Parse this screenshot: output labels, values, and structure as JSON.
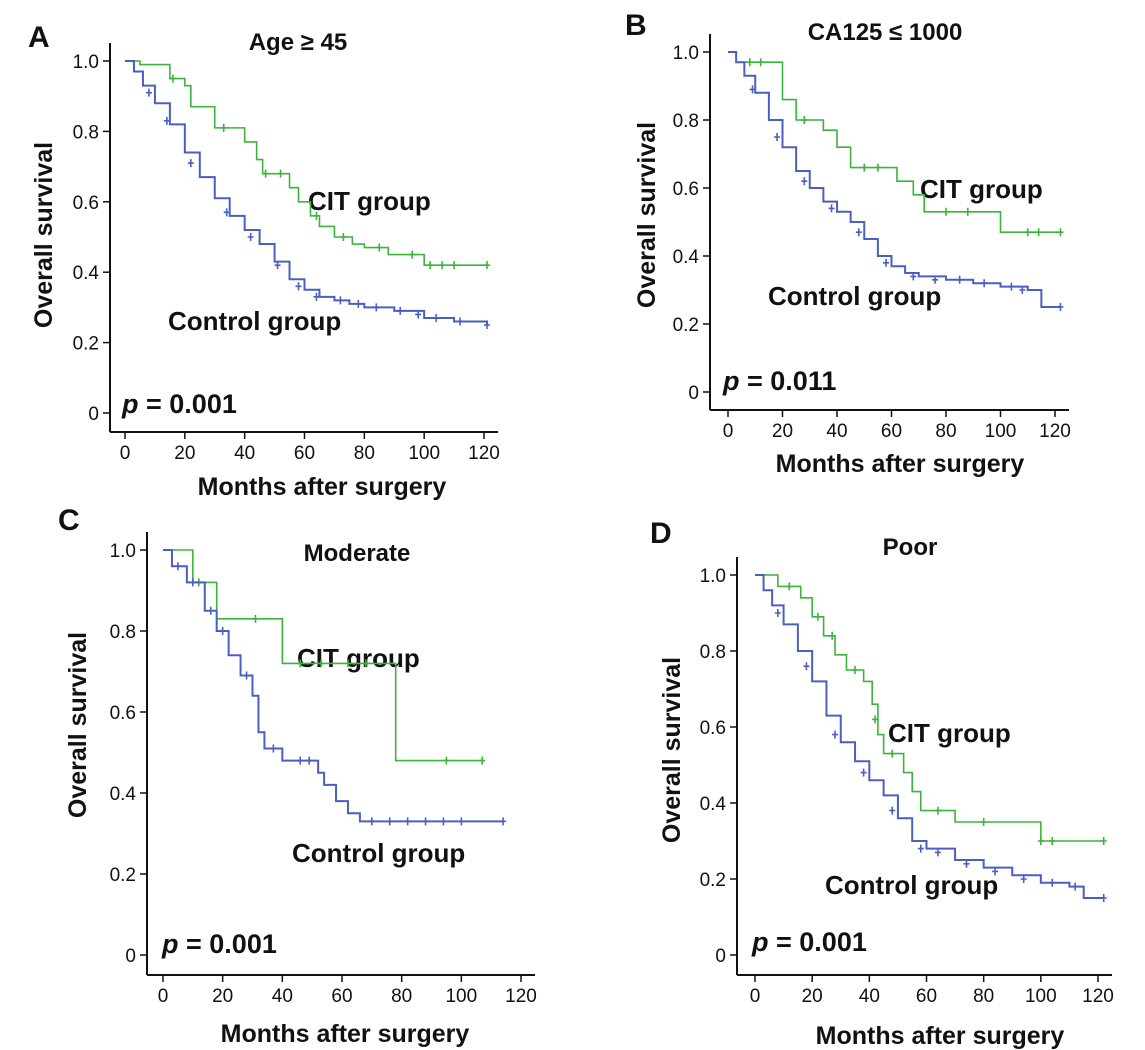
{
  "figure": {
    "panels": [
      "A",
      "B",
      "C",
      "D"
    ]
  },
  "chart_data": [
    {
      "panel": "A",
      "type": "line",
      "title": "Age ≥ 45",
      "xlabel": "Months after surgery",
      "ylabel": "Overall survival",
      "xlim": [
        0,
        125
      ],
      "ylim": [
        0,
        1.0
      ],
      "xticks": [
        "0",
        "20",
        "40",
        "60",
        "80",
        "100",
        "120"
      ],
      "yticks": [
        "0",
        "0.2",
        "0.4",
        "0.6",
        "0.8",
        "1.0"
      ],
      "p_value_label": "p",
      "p_value": "= 0.001",
      "colors": {
        "cit": "#3cb43c",
        "control": "#4a5fc1"
      },
      "series": [
        {
          "name": "CIT group",
          "step": [
            [
              0,
              1.0
            ],
            [
              5,
              0.99
            ],
            [
              15,
              0.95
            ],
            [
              20,
              0.93
            ],
            [
              22,
              0.87
            ],
            [
              28,
              0.87
            ],
            [
              30,
              0.81
            ],
            [
              38,
              0.81
            ],
            [
              40,
              0.77
            ],
            [
              44,
              0.72
            ],
            [
              46,
              0.68
            ],
            [
              53,
              0.68
            ],
            [
              55,
              0.64
            ],
            [
              58,
              0.6
            ],
            [
              62,
              0.56
            ],
            [
              65,
              0.53
            ],
            [
              70,
              0.5
            ],
            [
              76,
              0.48
            ],
            [
              80,
              0.47
            ],
            [
              88,
              0.45
            ],
            [
              100,
              0.42
            ],
            [
              121,
              0.42
            ]
          ],
          "censor": [
            [
              16,
              0.95
            ],
            [
              33,
              0.81
            ],
            [
              47,
              0.68
            ],
            [
              52,
              0.68
            ],
            [
              64,
              0.56
            ],
            [
              73,
              0.5
            ],
            [
              85,
              0.47
            ],
            [
              96,
              0.45
            ],
            [
              102,
              0.42
            ],
            [
              106,
              0.42
            ],
            [
              110,
              0.42
            ],
            [
              121,
              0.42
            ]
          ]
        },
        {
          "name": "Control group",
          "step": [
            [
              0,
              1.0
            ],
            [
              3,
              0.97
            ],
            [
              6,
              0.93
            ],
            [
              10,
              0.88
            ],
            [
              15,
              0.82
            ],
            [
              20,
              0.74
            ],
            [
              25,
              0.67
            ],
            [
              30,
              0.61
            ],
            [
              35,
              0.56
            ],
            [
              40,
              0.52
            ],
            [
              45,
              0.48
            ],
            [
              50,
              0.43
            ],
            [
              55,
              0.38
            ],
            [
              60,
              0.35
            ],
            [
              65,
              0.33
            ],
            [
              70,
              0.32
            ],
            [
              75,
              0.31
            ],
            [
              80,
              0.3
            ],
            [
              90,
              0.29
            ],
            [
              100,
              0.27
            ],
            [
              110,
              0.26
            ],
            [
              121,
              0.25
            ]
          ],
          "censor": [
            [
              8,
              0.91
            ],
            [
              14,
              0.83
            ],
            [
              22,
              0.71
            ],
            [
              34,
              0.57
            ],
            [
              42,
              0.5
            ],
            [
              51,
              0.42
            ],
            [
              58,
              0.36
            ],
            [
              64,
              0.33
            ],
            [
              72,
              0.32
            ],
            [
              78,
              0.31
            ],
            [
              84,
              0.3
            ],
            [
              92,
              0.29
            ],
            [
              98,
              0.28
            ],
            [
              104,
              0.27
            ],
            [
              112,
              0.26
            ],
            [
              121,
              0.25
            ]
          ]
        }
      ]
    },
    {
      "panel": "B",
      "type": "line",
      "title": "CA125 ≤ 1000",
      "xlabel": "Months after surgery",
      "ylabel": "Overall survival",
      "xlim": [
        -5,
        130
      ],
      "ylim": [
        0,
        1.0
      ],
      "xticks": [
        "0",
        "20",
        "40",
        "60",
        "80",
        "100",
        "120"
      ],
      "yticks": [
        "0",
        "0.2",
        "0.4",
        "0.6",
        "0.8",
        "1.0"
      ],
      "p_value_label": "p",
      "p_value": "= 0.011",
      "colors": {
        "cit": "#3cb43c",
        "control": "#4a5fc1"
      },
      "series": [
        {
          "name": "CIT group",
          "step": [
            [
              0,
              1.0
            ],
            [
              3,
              0.97
            ],
            [
              18,
              0.97
            ],
            [
              20,
              0.86
            ],
            [
              25,
              0.8
            ],
            [
              32,
              0.8
            ],
            [
              35,
              0.77
            ],
            [
              40,
              0.72
            ],
            [
              45,
              0.66
            ],
            [
              58,
              0.66
            ],
            [
              62,
              0.62
            ],
            [
              68,
              0.58
            ],
            [
              72,
              0.53
            ],
            [
              95,
              0.53
            ],
            [
              100,
              0.47
            ],
            [
              122,
              0.47
            ]
          ],
          "censor": [
            [
              8,
              0.97
            ],
            [
              12,
              0.97
            ],
            [
              28,
              0.8
            ],
            [
              50,
              0.66
            ],
            [
              55,
              0.66
            ],
            [
              80,
              0.53
            ],
            [
              88,
              0.53
            ],
            [
              110,
              0.47
            ],
            [
              114,
              0.47
            ],
            [
              122,
              0.47
            ]
          ]
        },
        {
          "name": "Control group",
          "step": [
            [
              0,
              1.0
            ],
            [
              3,
              0.97
            ],
            [
              6,
              0.93
            ],
            [
              10,
              0.88
            ],
            [
              15,
              0.8
            ],
            [
              20,
              0.72
            ],
            [
              25,
              0.65
            ],
            [
              30,
              0.6
            ],
            [
              35,
              0.56
            ],
            [
              40,
              0.53
            ],
            [
              45,
              0.5
            ],
            [
              50,
              0.45
            ],
            [
              55,
              0.4
            ],
            [
              60,
              0.37
            ],
            [
              65,
              0.35
            ],
            [
              70,
              0.34
            ],
            [
              80,
              0.33
            ],
            [
              90,
              0.32
            ],
            [
              100,
              0.31
            ],
            [
              110,
              0.3
            ],
            [
              115,
              0.25
            ],
            [
              122,
              0.25
            ]
          ],
          "censor": [
            [
              9,
              0.89
            ],
            [
              18,
              0.75
            ],
            [
              28,
              0.62
            ],
            [
              38,
              0.54
            ],
            [
              48,
              0.47
            ],
            [
              58,
              0.38
            ],
            [
              68,
              0.34
            ],
            [
              76,
              0.33
            ],
            [
              85,
              0.33
            ],
            [
              94,
              0.32
            ],
            [
              104,
              0.31
            ],
            [
              108,
              0.3
            ],
            [
              122,
              0.25
            ]
          ]
        }
      ]
    },
    {
      "panel": "C",
      "type": "line",
      "title": "Moderate",
      "xlabel": "Months after surgery",
      "ylabel": "Overall survival",
      "xlim": [
        -5,
        125
      ],
      "ylim": [
        0,
        1.0
      ],
      "xticks": [
        "0",
        "20",
        "40",
        "60",
        "80",
        "100",
        "120"
      ],
      "yticks": [
        "0",
        "0.2",
        "0.4",
        "0.6",
        "0.8",
        "1.0"
      ],
      "p_value_label": "p",
      "p_value": "= 0.001",
      "colors": {
        "cit": "#3cb43c",
        "control": "#4a5fc1"
      },
      "series": [
        {
          "name": "CIT group",
          "step": [
            [
              0,
              1.0
            ],
            [
              10,
              0.92
            ],
            [
              18,
              0.83
            ],
            [
              40,
              0.72
            ],
            [
              78,
              0.48
            ],
            [
              107,
              0.48
            ]
          ],
          "censor": [
            [
              12,
              0.92
            ],
            [
              31,
              0.83
            ],
            [
              46,
              0.72
            ],
            [
              53,
              0.72
            ],
            [
              62,
              0.72
            ],
            [
              68,
              0.72
            ],
            [
              95,
              0.48
            ],
            [
              107,
              0.48
            ]
          ]
        },
        {
          "name": "Control group",
          "step": [
            [
              0,
              1.0
            ],
            [
              3,
              0.96
            ],
            [
              8,
              0.92
            ],
            [
              14,
              0.85
            ],
            [
              18,
              0.8
            ],
            [
              22,
              0.74
            ],
            [
              26,
              0.69
            ],
            [
              30,
              0.64
            ],
            [
              32,
              0.55
            ],
            [
              34,
              0.51
            ],
            [
              40,
              0.48
            ],
            [
              52,
              0.45
            ],
            [
              54,
              0.42
            ],
            [
              58,
              0.38
            ],
            [
              62,
              0.35
            ],
            [
              66,
              0.33
            ],
            [
              114,
              0.33
            ]
          ],
          "censor": [
            [
              5,
              0.96
            ],
            [
              10,
              0.92
            ],
            [
              16,
              0.85
            ],
            [
              20,
              0.8
            ],
            [
              28,
              0.69
            ],
            [
              37,
              0.51
            ],
            [
              46,
              0.48
            ],
            [
              49,
              0.48
            ],
            [
              70,
              0.33
            ],
            [
              76,
              0.33
            ],
            [
              82,
              0.33
            ],
            [
              88,
              0.33
            ],
            [
              94,
              0.33
            ],
            [
              100,
              0.33
            ],
            [
              114,
              0.33
            ]
          ]
        }
      ]
    },
    {
      "panel": "D",
      "type": "line",
      "title": "Poor",
      "xlabel": "Months after surgery",
      "ylabel": "Overall survival",
      "xlim": [
        -5,
        125
      ],
      "ylim": [
        0,
        1.0
      ],
      "xticks": [
        "0",
        "20",
        "40",
        "60",
        "80",
        "100",
        "120"
      ],
      "yticks": [
        "0",
        "0.2",
        "0.4",
        "0.6",
        "0.8",
        "1.0"
      ],
      "p_value_label": "p",
      "p_value": "= 0.001",
      "colors": {
        "cit": "#3cb43c",
        "control": "#4a5fc1"
      },
      "series": [
        {
          "name": "CIT group",
          "step": [
            [
              0,
              1.0
            ],
            [
              8,
              0.97
            ],
            [
              16,
              0.94
            ],
            [
              20,
              0.89
            ],
            [
              24,
              0.84
            ],
            [
              28,
              0.79
            ],
            [
              32,
              0.75
            ],
            [
              38,
              0.72
            ],
            [
              41,
              0.66
            ],
            [
              43,
              0.58
            ],
            [
              45,
              0.53
            ],
            [
              52,
              0.48
            ],
            [
              55,
              0.43
            ],
            [
              58,
              0.38
            ],
            [
              70,
              0.35
            ],
            [
              100,
              0.3
            ],
            [
              122,
              0.3
            ]
          ],
          "censor": [
            [
              12,
              0.97
            ],
            [
              22,
              0.89
            ],
            [
              27,
              0.84
            ],
            [
              35,
              0.75
            ],
            [
              42,
              0.62
            ],
            [
              48,
              0.53
            ],
            [
              64,
              0.38
            ],
            [
              80,
              0.35
            ],
            [
              100,
              0.3
            ],
            [
              104,
              0.3
            ],
            [
              122,
              0.3
            ]
          ]
        },
        {
          "name": "Control group",
          "step": [
            [
              0,
              1.0
            ],
            [
              3,
              0.96
            ],
            [
              6,
              0.92
            ],
            [
              10,
              0.87
            ],
            [
              15,
              0.8
            ],
            [
              20,
              0.72
            ],
            [
              25,
              0.63
            ],
            [
              30,
              0.56
            ],
            [
              35,
              0.51
            ],
            [
              40,
              0.46
            ],
            [
              45,
              0.42
            ],
            [
              50,
              0.36
            ],
            [
              55,
              0.3
            ],
            [
              60,
              0.28
            ],
            [
              70,
              0.25
            ],
            [
              80,
              0.23
            ],
            [
              90,
              0.21
            ],
            [
              100,
              0.19
            ],
            [
              110,
              0.18
            ],
            [
              115,
              0.15
            ],
            [
              122,
              0.15
            ]
          ],
          "censor": [
            [
              8,
              0.9
            ],
            [
              18,
              0.76
            ],
            [
              28,
              0.58
            ],
            [
              38,
              0.48
            ],
            [
              48,
              0.38
            ],
            [
              58,
              0.28
            ],
            [
              64,
              0.27
            ],
            [
              74,
              0.24
            ],
            [
              84,
              0.22
            ],
            [
              94,
              0.2
            ],
            [
              104,
              0.19
            ],
            [
              112,
              0.18
            ],
            [
              122,
              0.15
            ]
          ]
        }
      ]
    }
  ]
}
